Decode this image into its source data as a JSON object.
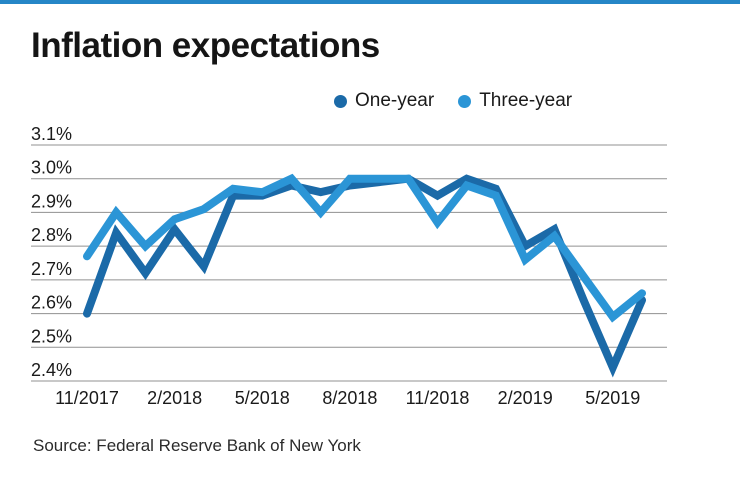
{
  "page": {
    "accent_color": "#2586c7",
    "background": "#ffffff"
  },
  "header": {
    "title": "Inflation expectations"
  },
  "footer": {
    "source": "Source: Federal Reserve Bank of New York"
  },
  "chart_data": {
    "type": "line",
    "title": "Inflation expectations",
    "x": [
      "11/2017",
      "12/2017",
      "1/2018",
      "2/2018",
      "3/2018",
      "4/2018",
      "5/2018",
      "6/2018",
      "7/2018",
      "8/2018",
      "9/2018",
      "10/2018",
      "11/2018",
      "12/2018",
      "1/2019",
      "2/2019",
      "3/2019",
      "4/2019",
      "5/2019",
      "6/2019"
    ],
    "x_axis_ticks": [
      "11/2017",
      "2/2018",
      "5/2018",
      "8/2018",
      "11/2018",
      "2/2019",
      "5/2019"
    ],
    "y_ticks": [
      {
        "label": "3.1%",
        "value": 3.1
      },
      {
        "label": "3.0%",
        "value": 3.0
      },
      {
        "label": "2.9%",
        "value": 2.9
      },
      {
        "label": "2.8%",
        "value": 2.8
      },
      {
        "label": "2.7%",
        "value": 2.7
      },
      {
        "label": "2.6%",
        "value": 2.6
      },
      {
        "label": "2.5%",
        "value": 2.5
      },
      {
        "label": "2.4%",
        "value": 2.4
      }
    ],
    "ylim": [
      2.4,
      3.1
    ],
    "grid": true,
    "legend_position": "top",
    "series": [
      {
        "name": "One-year",
        "color": "#1b6aa8",
        "values": [
          2.6,
          2.84,
          2.72,
          2.85,
          2.74,
          2.95,
          2.95,
          2.98,
          2.96,
          2.98,
          2.99,
          3.0,
          2.95,
          3.0,
          2.97,
          2.8,
          2.85,
          2.64,
          2.44,
          2.64
        ]
      },
      {
        "name": "Three-year",
        "color": "#2b95d6",
        "values": [
          2.77,
          2.9,
          2.8,
          2.88,
          2.91,
          2.97,
          2.96,
          3.0,
          2.9,
          3.0,
          3.0,
          3.0,
          2.87,
          2.98,
          2.95,
          2.76,
          2.83,
          2.71,
          2.59,
          2.66
        ]
      }
    ],
    "grid_color": "#919191",
    "tick_text_color": "#1a1a1a"
  }
}
